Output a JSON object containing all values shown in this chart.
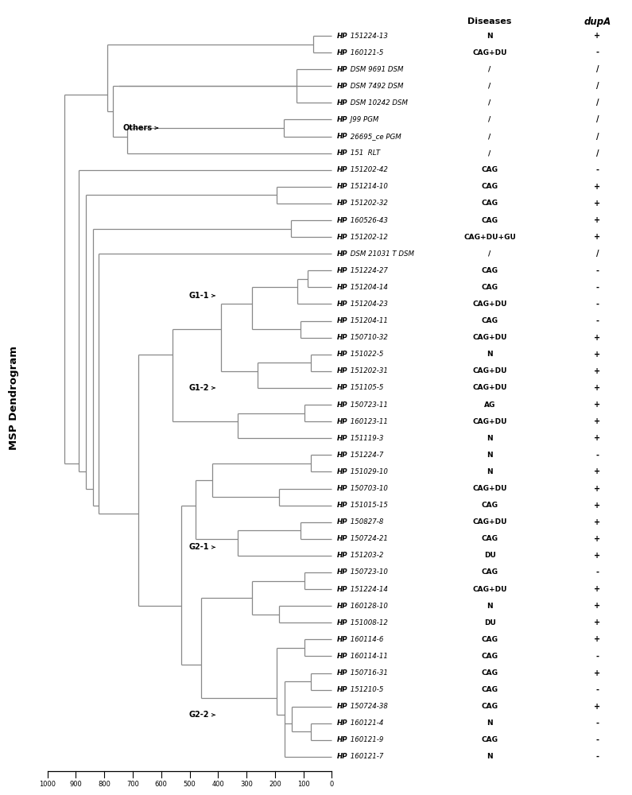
{
  "taxa": [
    "HP 151224-13",
    "HP 160121-5",
    "HP DSM 9691 DSM",
    "HP DSM 7492 DSM",
    "HP DSM 10242 DSM",
    "HP J99 PGM",
    "HP 26695_ce PGM",
    "HP 151  RLT",
    "HP 151202-42",
    "HP 151214-10",
    "HP 151202-32",
    "HP 160526-43",
    "HP 151202-12",
    "HP DSM 21031 T DSM",
    "HP 151224-27",
    "HP 151204-14",
    "HP 151204-23",
    "HP 151204-11",
    "HP 150710-32",
    "HP 151022-5",
    "HP 151202-31",
    "HP 151105-5",
    "HP 150723-11",
    "HP 160123-11",
    "HP 151119-3",
    "HP 151224-7",
    "HP 151029-10",
    "HP 150703-10",
    "HP 151015-15",
    "HP 150827-8",
    "HP 150724-21",
    "HP 151203-2",
    "HP 150723-10",
    "HP 151224-14",
    "HP 160128-10",
    "HP 151008-12",
    "HP 160114-6",
    "HP 160114-11",
    "HP 150716-31",
    "HP 151210-5",
    "HP 150724-38",
    "HP 160121-4",
    "HP 160121-9",
    "HP 160121-7"
  ],
  "diseases": [
    "N",
    "CAG+DU",
    "/",
    "/",
    "/",
    "/",
    "/",
    "/",
    "CAG",
    "CAG",
    "CAG",
    "CAG",
    "CAG+DU+GU",
    "/",
    "CAG",
    "CAG",
    "CAG+DU",
    "CAG",
    "CAG+DU",
    "N",
    "CAG+DU",
    "CAG+DU",
    "AG",
    "CAG+DU",
    "N",
    "N",
    "N",
    "CAG+DU",
    "CAG",
    "CAG+DU",
    "CAG",
    "DU",
    "CAG",
    "CAG+DU",
    "N",
    "DU",
    "CAG",
    "CAG",
    "CAG",
    "CAG",
    "CAG",
    "N",
    "CAG",
    "N"
  ],
  "dup_a": [
    "+",
    "-",
    "/",
    "/",
    "/",
    "/",
    "/",
    "/",
    "-",
    "+",
    "+",
    "+",
    "+",
    "/",
    "-",
    "-",
    "-",
    "-",
    "+",
    "+",
    "+",
    "+",
    "+",
    "+",
    "+",
    "-",
    "+",
    "+",
    "+",
    "+",
    "+",
    "+",
    "-",
    "+",
    "+",
    "+",
    "+",
    "-",
    "+",
    "-",
    "+",
    "-",
    "-",
    "-"
  ],
  "scale_ticks": [
    1000,
    900,
    800,
    700,
    600,
    500,
    400,
    300,
    200,
    100,
    0
  ],
  "bg_color": "#ffffff",
  "line_color": "#888888",
  "lw": 0.9
}
